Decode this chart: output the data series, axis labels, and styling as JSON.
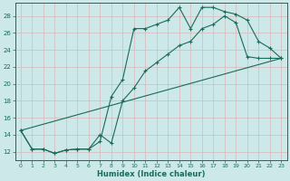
{
  "xlabel": "Humidex (Indice chaleur)",
  "bg_color": "#cce8e8",
  "grid_color": "#c0d8d8",
  "line_color": "#1a6b5a",
  "xlim": [
    -0.5,
    23.5
  ],
  "ylim": [
    11,
    29.5
  ],
  "xticks": [
    0,
    1,
    2,
    3,
    4,
    5,
    6,
    7,
    8,
    9,
    10,
    11,
    12,
    13,
    14,
    15,
    16,
    17,
    18,
    19,
    20,
    21,
    22,
    23
  ],
  "yticks": [
    12,
    14,
    16,
    18,
    20,
    22,
    24,
    26,
    28
  ],
  "line1_x": [
    0,
    1,
    2,
    3,
    4,
    5,
    6,
    7,
    8,
    9,
    10,
    11,
    12,
    13,
    14,
    15,
    16,
    17,
    18,
    19,
    20,
    21,
    22,
    23
  ],
  "line1_y": [
    14.5,
    12.3,
    12.3,
    11.8,
    12.2,
    12.3,
    12.3,
    13.2,
    18.5,
    20.5,
    26.5,
    26.5,
    27.0,
    27.5,
    29.0,
    26.5,
    29.0,
    29.0,
    28.5,
    28.2,
    27.5,
    25.0,
    24.2,
    23.0
  ],
  "line2_x": [
    0,
    1,
    2,
    3,
    4,
    5,
    6,
    7,
    8,
    9,
    10,
    11,
    12,
    13,
    14,
    15,
    16,
    17,
    18,
    19,
    20,
    21,
    22,
    23
  ],
  "line2_y": [
    14.5,
    12.3,
    12.3,
    11.8,
    12.2,
    12.3,
    12.3,
    14.0,
    13.0,
    18.0,
    19.5,
    21.5,
    22.5,
    23.5,
    24.5,
    25.0,
    26.5,
    27.0,
    28.0,
    27.2,
    23.2,
    23.0,
    23.0,
    23.0
  ],
  "line3_x": [
    0,
    23
  ],
  "line3_y": [
    14.5,
    23.0
  ]
}
